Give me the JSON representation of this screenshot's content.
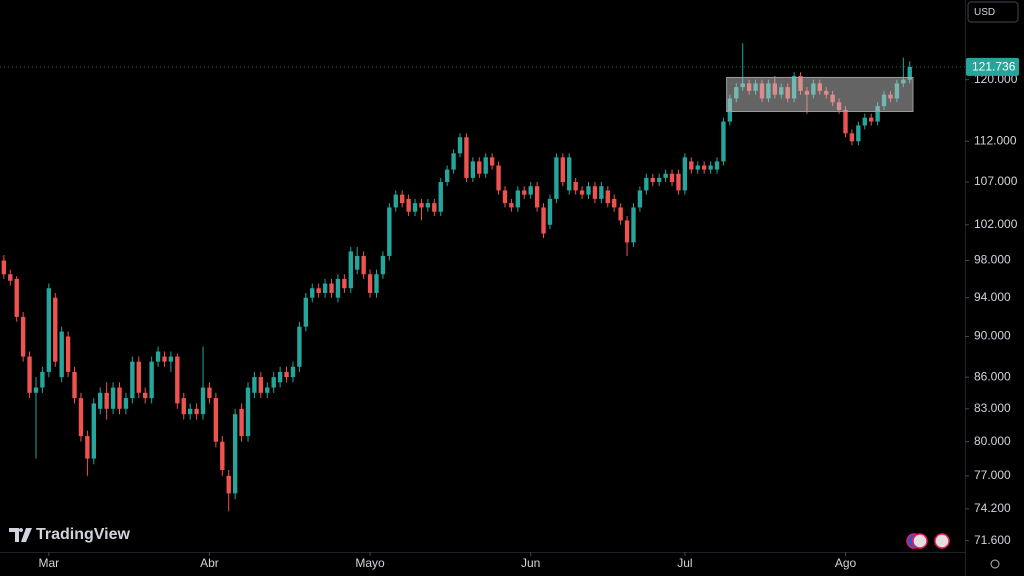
{
  "chart_data": {
    "type": "candlestick",
    "currency": "USD",
    "brand": "TradingView",
    "log_scale": true,
    "up_color": "#26a69a",
    "down_color": "#ef5350",
    "ylim": [
      70.7,
      131.2
    ],
    "xlim": [
      -0.6,
      149.6
    ],
    "yticks": [
      {
        "value": 120,
        "label": "120.000"
      },
      {
        "value": 112,
        "label": "112.000"
      },
      {
        "value": 107,
        "label": "107.000"
      },
      {
        "value": 102,
        "label": "102.000"
      },
      {
        "value": 98,
        "label": "98.000"
      },
      {
        "value": 94,
        "label": "94.000"
      },
      {
        "value": 90,
        "label": "90.000"
      },
      {
        "value": 86,
        "label": "86.000"
      },
      {
        "value": 83,
        "label": "83.000"
      },
      {
        "value": 80,
        "label": "80.000"
      },
      {
        "value": 77,
        "label": "77.000"
      },
      {
        "value": 74.2,
        "label": "74.200"
      },
      {
        "value": 71.6,
        "label": "71.600"
      }
    ],
    "xticks": [
      {
        "value": 7,
        "label": "Mar"
      },
      {
        "value": 32,
        "label": "Abr"
      },
      {
        "value": 57,
        "label": "Mayo"
      },
      {
        "value": 82,
        "label": "Jun"
      },
      {
        "value": 106,
        "label": "Jul"
      },
      {
        "value": 131,
        "label": "Ago"
      }
    ],
    "last_price": 121.736,
    "zone": {
      "x": [
        112.5,
        141.5
      ],
      "y": [
        115.8,
        120.3
      ]
    },
    "ohlc": [
      [
        98,
        98.6,
        96,
        96.5
      ],
      [
        96.5,
        97,
        95.3,
        95.8
      ],
      [
        96,
        96.3,
        91.5,
        92
      ],
      [
        92,
        92.5,
        87.5,
        88
      ],
      [
        88,
        88.5,
        84,
        84.5
      ],
      [
        84.5,
        86,
        78.5,
        85
      ],
      [
        85,
        87,
        84.5,
        86.5
      ],
      [
        86.5,
        95.5,
        86,
        95
      ],
      [
        94,
        94.5,
        87,
        87.5
      ],
      [
        86,
        91,
        85.5,
        90.5
      ],
      [
        90,
        90.5,
        86,
        86.5
      ],
      [
        86.5,
        87,
        83.5,
        84
      ],
      [
        84,
        84.5,
        80,
        80.5
      ],
      [
        80.5,
        81,
        77,
        78.5
      ],
      [
        78.5,
        84,
        78,
        83.5
      ],
      [
        83,
        85,
        82.5,
        84.5
      ],
      [
        84.5,
        85.5,
        82,
        83
      ],
      [
        83,
        85.5,
        82.5,
        85
      ],
      [
        85,
        85.5,
        82.5,
        83
      ],
      [
        83,
        84.5,
        82.5,
        84
      ],
      [
        84,
        88,
        83.5,
        87.5
      ],
      [
        87.5,
        88,
        84,
        84.5
      ],
      [
        84.5,
        85,
        83.5,
        84
      ],
      [
        84,
        88,
        83.5,
        87.5
      ],
      [
        87.5,
        89,
        87,
        88.5
      ],
      [
        88,
        88.5,
        87,
        87.5
      ],
      [
        87.5,
        88.5,
        86.5,
        88
      ],
      [
        88,
        88.3,
        83,
        83.5
      ],
      [
        84,
        84.5,
        82,
        82.5
      ],
      [
        82.5,
        83.5,
        82,
        83
      ],
      [
        83,
        83.5,
        82,
        82.5
      ],
      [
        82.5,
        89,
        82,
        85
      ],
      [
        85,
        85.5,
        83.5,
        84
      ],
      [
        84,
        84.5,
        79.5,
        80
      ],
      [
        80,
        80.5,
        77,
        77.5
      ],
      [
        77,
        77.5,
        74,
        75.5
      ],
      [
        75.5,
        83,
        75,
        82.5
      ],
      [
        83,
        83.5,
        80,
        80.5
      ],
      [
        80.5,
        85.5,
        80,
        85
      ],
      [
        84.5,
        86.5,
        84,
        86
      ],
      [
        86,
        86.5,
        84,
        84.5
      ],
      [
        84.5,
        85.5,
        84,
        85
      ],
      [
        85,
        86.5,
        84.5,
        86
      ],
      [
        85.5,
        87,
        85,
        86.5
      ],
      [
        86.5,
        87,
        85.5,
        86
      ],
      [
        86,
        87.5,
        85.5,
        87
      ],
      [
        87,
        91.5,
        86.5,
        91
      ],
      [
        91,
        94.5,
        90.5,
        94
      ],
      [
        94,
        95.5,
        93.5,
        95
      ],
      [
        95,
        95.5,
        94,
        94.5
      ],
      [
        94.5,
        96,
        94,
        95.5
      ],
      [
        95.5,
        96,
        94,
        94.5
      ],
      [
        94,
        96.5,
        93.5,
        96
      ],
      [
        96,
        96.5,
        94.5,
        95
      ],
      [
        95,
        99.5,
        94.5,
        99
      ],
      [
        97,
        99.5,
        96.5,
        98.5
      ],
      [
        98.5,
        99,
        96,
        96.5
      ],
      [
        96.5,
        97,
        94,
        94.5
      ],
      [
        94.5,
        97,
        94,
        96.5
      ],
      [
        96.5,
        99,
        96,
        98.5
      ],
      [
        98.5,
        104.5,
        98,
        104
      ],
      [
        104,
        106,
        103.5,
        105.5
      ],
      [
        105.5,
        106,
        104,
        104.5
      ],
      [
        105,
        105.5,
        103,
        103.5
      ],
      [
        103.5,
        105,
        103,
        104.5
      ],
      [
        104.5,
        105,
        102.5,
        104
      ],
      [
        104,
        105,
        103.5,
        104.5
      ],
      [
        104.5,
        105,
        103,
        103.5
      ],
      [
        103.5,
        107.5,
        103,
        107
      ],
      [
        107,
        109,
        106.5,
        108.5
      ],
      [
        108.5,
        111,
        108,
        110.5
      ],
      [
        110.5,
        113,
        110,
        112.5
      ],
      [
        112.5,
        113,
        107,
        107.5
      ],
      [
        107.5,
        110,
        107,
        109.5
      ],
      [
        109.5,
        110,
        107.5,
        108
      ],
      [
        108,
        110.5,
        107.5,
        110
      ],
      [
        110,
        110.5,
        108.5,
        109
      ],
      [
        109,
        109.5,
        105.5,
        106
      ],
      [
        106,
        106.5,
        104,
        104.5
      ],
      [
        104.5,
        105,
        103.5,
        104
      ],
      [
        104,
        106.5,
        103.5,
        106
      ],
      [
        106,
        106.5,
        105,
        105.5
      ],
      [
        105.5,
        107,
        105,
        106.5
      ],
      [
        106.5,
        107,
        103.5,
        104
      ],
      [
        104,
        104.5,
        100.5,
        101
      ],
      [
        102,
        105.5,
        101.5,
        105
      ],
      [
        105,
        110.5,
        104.5,
        110
      ],
      [
        110,
        110.5,
        106.5,
        107
      ],
      [
        106,
        110.5,
        105.5,
        110
      ],
      [
        107,
        107.5,
        105.5,
        106
      ],
      [
        106,
        106.5,
        105,
        105.5
      ],
      [
        105.5,
        107,
        105,
        106.5
      ],
      [
        106.5,
        107,
        104.5,
        105
      ],
      [
        105,
        107,
        104.5,
        106.5
      ],
      [
        106,
        106.5,
        104,
        104.5
      ],
      [
        105,
        105.5,
        103.5,
        104
      ],
      [
        104,
        104.5,
        102,
        102.5
      ],
      [
        102.5,
        103,
        98.5,
        100
      ],
      [
        100,
        104.5,
        99.5,
        104
      ],
      [
        104,
        106.5,
        103.5,
        106
      ],
      [
        106,
        108,
        105.5,
        107.5
      ],
      [
        107.5,
        108,
        106.5,
        107
      ],
      [
        107,
        108,
        106.5,
        107.5
      ],
      [
        107.5,
        108.5,
        107,
        108
      ],
      [
        108,
        108.5,
        106.5,
        107
      ],
      [
        108,
        108.5,
        105.5,
        106
      ],
      [
        106,
        110.5,
        105.5,
        110
      ],
      [
        109.5,
        110,
        108,
        108.5
      ],
      [
        108.5,
        109.5,
        108,
        109
      ],
      [
        109,
        109.5,
        108,
        108.5
      ],
      [
        108.5,
        109.5,
        108,
        109
      ],
      [
        108.5,
        110,
        108,
        109.5
      ],
      [
        109.5,
        115,
        109,
        114.5
      ],
      [
        114.5,
        118,
        114,
        117.5
      ],
      [
        117.5,
        119.5,
        117,
        119
      ],
      [
        119,
        125,
        118.5,
        119.5
      ],
      [
        119.5,
        120,
        118,
        118.5
      ],
      [
        118.5,
        120,
        118,
        119.5
      ],
      [
        119.5,
        120,
        117,
        117.5
      ],
      [
        117.5,
        120,
        117,
        119.5
      ],
      [
        119.5,
        120.5,
        117.5,
        118
      ],
      [
        118,
        119.5,
        117.5,
        119
      ],
      [
        119,
        119.5,
        117,
        117.5
      ],
      [
        117.5,
        121,
        117,
        120.5
      ],
      [
        120.5,
        121,
        118,
        118.5
      ],
      [
        118.5,
        119,
        115.5,
        118
      ],
      [
        118,
        120,
        117.5,
        119.5
      ],
      [
        119.5,
        120,
        118,
        118.5
      ],
      [
        118.5,
        119,
        117.5,
        118
      ],
      [
        118,
        118.5,
        116.5,
        117
      ],
      [
        117,
        117.5,
        115.5,
        116
      ],
      [
        116,
        116.5,
        112.5,
        113
      ],
      [
        113,
        113.5,
        111.5,
        112
      ],
      [
        112,
        114.5,
        111.5,
        114
      ],
      [
        114,
        115.5,
        113.5,
        115
      ],
      [
        115,
        115.5,
        114,
        114.5
      ],
      [
        114.5,
        117,
        114,
        116.5
      ],
      [
        116.5,
        118.5,
        116,
        118
      ],
      [
        118,
        118.5,
        117,
        117.5
      ],
      [
        117.5,
        120,
        117,
        119.5
      ],
      [
        119.5,
        123,
        119,
        120
      ],
      [
        120,
        122.5,
        119.5,
        121.736
      ]
    ]
  }
}
